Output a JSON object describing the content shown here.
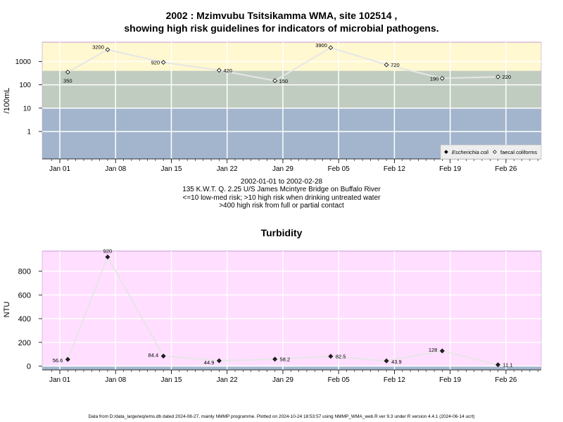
{
  "chart_data": [
    {
      "type": "line",
      "title_line1": "2002 : Mzimvubu Tsitsikamma WMA, site 102514 ,",
      "title_line2": "showing high risk guidelines for indicators of microbial pathogens.",
      "ylabel": "/100mL",
      "y_scale": "log",
      "yticks": [
        "1",
        "10",
        "100",
        "1000"
      ],
      "x_ticks": [
        "Jan 01",
        "Jan 08",
        "Jan 15",
        "Jan 22",
        "Jan 29",
        "Feb 05",
        "Feb 12",
        "Feb 19",
        "Feb 26"
      ],
      "x_tick_dates": [
        "2002-01-01",
        "2002-01-08",
        "2002-01-15",
        "2002-01-22",
        "2002-01-29",
        "2002-02-05",
        "2002-02-12",
        "2002-02-19",
        "2002-02-26"
      ],
      "grid": true,
      "bands": [
        {
          "from": null,
          "to": 10,
          "color": "#a2b5cd"
        },
        {
          "from": 10,
          "to": 400,
          "color": "#c1ccc0"
        },
        {
          "from": 400,
          "to": null,
          "color": "#fff8d0"
        }
      ],
      "legend_position": "bottom-right",
      "series": [
        {
          "name": "Escherichia coli",
          "marker": "filled-diamond",
          "x": [],
          "y": []
        },
        {
          "name": "faecal coliforms",
          "marker": "open-diamond",
          "x": [
            "2002-01-02",
            "2002-01-07",
            "2002-01-14",
            "2002-01-21",
            "2002-01-28",
            "2002-02-04",
            "2002-02-11",
            "2002-02-18",
            "2002-02-25"
          ],
          "y": [
            350,
            3200,
            920,
            420,
            150,
            3900,
            720,
            190,
            220
          ],
          "labels": [
            "350",
            "3200",
            "920",
            "420",
            "150",
            "3900",
            "720",
            "190",
            "220"
          ]
        }
      ],
      "caption_lines": [
        "2002-01-01 to 2002-02-28",
        "135 K.W.T. Q. 2.25 U/S James Mcintyre Bridge on Buffalo River",
        "<=10 low-med risk; >10 high risk when drinking untreated water",
        ">400 high risk from full or partial contact"
      ]
    },
    {
      "type": "line",
      "title": "Turbidity",
      "ylabel": "NTU",
      "yticks": [
        "0",
        "200",
        "400",
        "600",
        "800"
      ],
      "ylim": [
        -30,
        960
      ],
      "x_ticks": [
        "Jan 01",
        "Jan 08",
        "Jan 15",
        "Jan 22",
        "Jan 29",
        "Feb 05",
        "Feb 12",
        "Feb 19",
        "Feb 26"
      ],
      "grid": true,
      "bands": [
        {
          "from": null,
          "to": 0,
          "color": "#a2b5cd"
        },
        {
          "from": 0,
          "to": null,
          "color": "#ffdeff"
        }
      ],
      "series": [
        {
          "marker": "filled-diamond",
          "x": [
            "2002-01-02",
            "2002-01-07",
            "2002-01-14",
            "2002-01-21",
            "2002-01-28",
            "2002-02-04",
            "2002-02-11",
            "2002-02-18",
            "2002-02-25"
          ],
          "y": [
            56.6,
            920,
            84.4,
            44.9,
            58.2,
            82.5,
            43.9,
            128,
            11.1
          ],
          "labels": [
            "56.6",
            "920",
            "84.4",
            "44.9",
            "58.2",
            "82.5",
            "43.9",
            "128",
            "11.1"
          ]
        }
      ]
    }
  ],
  "footer": "Data from D:/data_large/wq/wms.db dated 2024-08-27, mainly NMMP programme. Plotted on 2024-10-24 18:53:57 using NMMP_WMA_web.R ver 9.3 under R version 4.4.1 (2024-06-14 ucrt)"
}
